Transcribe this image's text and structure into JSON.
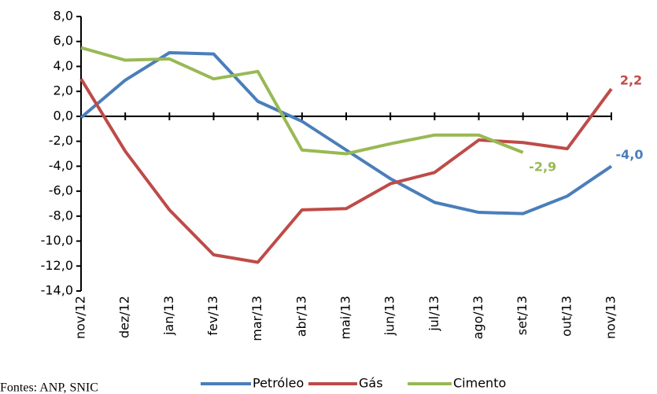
{
  "chart_data": {
    "type": "line",
    "categories": [
      "nov/12",
      "dez/12",
      "jan/13",
      "fev/13",
      "mar/13",
      "abr/13",
      "mai/13",
      "jun/13",
      "jul/13",
      "ago/13",
      "set/13",
      "out/13",
      "nov/13"
    ],
    "series": [
      {
        "name": "Petróleo",
        "color": "#4a7ebb",
        "values": [
          -0.1,
          2.9,
          5.1,
          5.0,
          1.2,
          -0.4,
          -2.7,
          -5.0,
          -6.9,
          -7.7,
          -7.8,
          -6.4,
          -4.0
        ],
        "value_labels": [
          null,
          null,
          null,
          null,
          null,
          null,
          null,
          null,
          null,
          null,
          null,
          null,
          "-4,0"
        ]
      },
      {
        "name": "Gás",
        "color": "#be4b48",
        "values": [
          3.0,
          -2.8,
          -7.5,
          -11.1,
          -11.7,
          -7.5,
          -7.4,
          -5.4,
          -4.5,
          -1.9,
          -2.1,
          -2.6,
          2.2
        ],
        "value_labels": [
          null,
          null,
          null,
          null,
          null,
          null,
          null,
          null,
          null,
          null,
          null,
          null,
          "2,2"
        ]
      },
      {
        "name": "Cimento",
        "color": "#98b954",
        "values": [
          5.5,
          4.5,
          4.6,
          3.0,
          3.6,
          -2.7,
          -3.0,
          -2.2,
          -1.5,
          -1.5,
          -2.9,
          null,
          null
        ],
        "value_labels": [
          null,
          null,
          null,
          null,
          null,
          null,
          null,
          null,
          null,
          null,
          "-2,9",
          null,
          null
        ]
      }
    ],
    "ylim": [
      -14,
      8
    ],
    "yticks": [
      {
        "value": -14,
        "label": "-14,0"
      },
      {
        "value": -12,
        "label": "-12,0"
      },
      {
        "value": -10,
        "label": "-10,0"
      },
      {
        "value": -8,
        "label": "-8,0"
      },
      {
        "value": -6,
        "label": "-6,0"
      },
      {
        "value": -4,
        "label": "-4,0"
      },
      {
        "value": -2,
        "label": "-2,0"
      },
      {
        "value": 0,
        "label": "0,0"
      },
      {
        "value": 2,
        "label": "2,0"
      },
      {
        "value": 4,
        "label": "4,0"
      },
      {
        "value": 6,
        "label": "6,0"
      },
      {
        "value": 8,
        "label": "8,0"
      }
    ],
    "legend": "bottom",
    "source": "Fontes: ANP, SNIC"
  }
}
